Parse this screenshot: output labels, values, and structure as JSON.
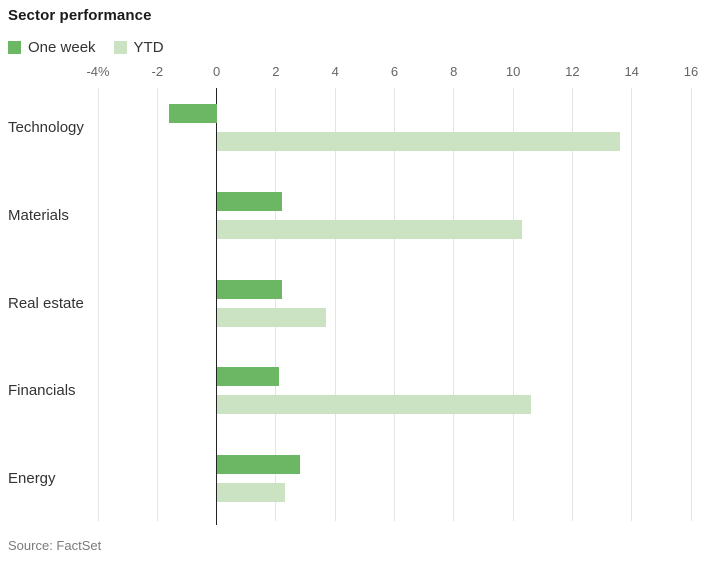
{
  "title": "Sector performance",
  "legend": [
    {
      "label": "One week",
      "color": "#6cb764",
      "icon": "legend-swatch-dark-green"
    },
    {
      "label": "YTD",
      "color": "#cbe2c3",
      "icon": "legend-swatch-light-green"
    }
  ],
  "source": "Source: FactSet",
  "colors": {
    "one_week": "#6cb764",
    "ytd": "#cbe2c3",
    "gridline": "#e4e4e4",
    "zero_line": "#222222",
    "title_text": "#1a1a1a",
    "axis_text": "#666666",
    "category_text": "#333333",
    "source_text": "#7b7b7b"
  },
  "chart_data": {
    "type": "bar",
    "orientation": "horizontal",
    "title": "Sector performance",
    "categories": [
      "Technology",
      "Materials",
      "Real estate",
      "Financials",
      "Energy"
    ],
    "series": [
      {
        "name": "One week",
        "color": "#6cb764",
        "values": [
          -1.6,
          2.2,
          2.2,
          2.1,
          2.8
        ]
      },
      {
        "name": "YTD",
        "color": "#cbe2c3",
        "values": [
          13.6,
          10.3,
          3.7,
          10.6,
          2.3
        ]
      }
    ],
    "xlim": [
      -4,
      16
    ],
    "xticks": [
      -4,
      -2,
      0,
      2,
      4,
      6,
      8,
      10,
      12,
      14,
      16
    ],
    "xtick_labels": [
      "-4%",
      "-2",
      "0",
      "2",
      "4",
      "6",
      "8",
      "10",
      "12",
      "14",
      "16"
    ],
    "unit": "percent",
    "grid": true,
    "legend_position": "top-left",
    "value_axis": "x"
  }
}
